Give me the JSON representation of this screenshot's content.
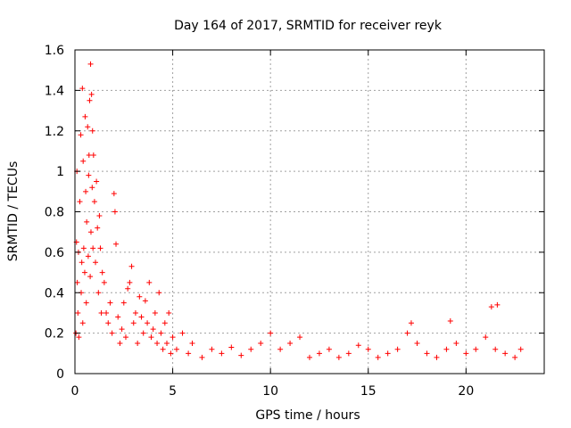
{
  "chart_data": {
    "type": "scatter",
    "title": "Day 164 of 2017, SRMTID for receiver reyk",
    "xlabel": "GPS time / hours",
    "ylabel": "SRMTID / TECUs",
    "xlim": [
      0,
      24
    ],
    "ylim": [
      0,
      1.6
    ],
    "x_ticks": [
      0,
      5,
      10,
      15,
      20
    ],
    "x_tick_labels": [
      "0",
      "5",
      "10",
      "15",
      "20"
    ],
    "y_ticks": [
      0,
      0.2,
      0.4,
      0.6,
      0.8,
      1,
      1.2,
      1.4,
      1.6
    ],
    "y_tick_labels": [
      "0",
      "0.2",
      "0.4",
      "0.6",
      "0.8",
      "1",
      "1.2",
      "1.4",
      "1.6"
    ],
    "grid": true,
    "marker": "+",
    "marker_color": "#ff0000",
    "series": [
      {
        "name": "SRMTID",
        "points": [
          [
            0.05,
            0.2
          ],
          [
            0.08,
            0.65
          ],
          [
            0.1,
            1.0
          ],
          [
            0.12,
            0.45
          ],
          [
            0.15,
            0.3
          ],
          [
            0.18,
            0.6
          ],
          [
            0.2,
            0.18
          ],
          [
            0.25,
            0.85
          ],
          [
            0.3,
            1.18
          ],
          [
            0.32,
            0.4
          ],
          [
            0.35,
            0.55
          ],
          [
            0.38,
            1.41
          ],
          [
            0.4,
            0.25
          ],
          [
            0.42,
            1.05
          ],
          [
            0.45,
            0.62
          ],
          [
            0.5,
            0.5
          ],
          [
            0.52,
            1.27
          ],
          [
            0.55,
            0.9
          ],
          [
            0.58,
            0.35
          ],
          [
            0.6,
            0.75
          ],
          [
            0.65,
            1.22
          ],
          [
            0.68,
            0.58
          ],
          [
            0.7,
            0.98
          ],
          [
            0.72,
            1.08
          ],
          [
            0.75,
            1.35
          ],
          [
            0.78,
            0.48
          ],
          [
            0.8,
            1.53
          ],
          [
            0.82,
            0.7
          ],
          [
            0.85,
            1.38
          ],
          [
            0.88,
            0.92
          ],
          [
            0.9,
            1.2
          ],
          [
            0.92,
            0.62
          ],
          [
            0.95,
            1.08
          ],
          [
            1.0,
            0.85
          ],
          [
            1.05,
            0.55
          ],
          [
            1.1,
            0.95
          ],
          [
            1.15,
            0.72
          ],
          [
            1.2,
            0.4
          ],
          [
            1.25,
            0.78
          ],
          [
            1.3,
            0.62
          ],
          [
            1.35,
            0.3
          ],
          [
            1.4,
            0.5
          ],
          [
            1.5,
            0.45
          ],
          [
            1.6,
            0.3
          ],
          [
            1.7,
            0.25
          ],
          [
            1.8,
            0.35
          ],
          [
            1.9,
            0.2
          ],
          [
            2.0,
            0.89
          ],
          [
            2.05,
            0.8
          ],
          [
            2.1,
            0.64
          ],
          [
            2.2,
            0.28
          ],
          [
            2.3,
            0.15
          ],
          [
            2.4,
            0.22
          ],
          [
            2.5,
            0.35
          ],
          [
            2.6,
            0.18
          ],
          [
            2.7,
            0.42
          ],
          [
            2.8,
            0.45
          ],
          [
            2.9,
            0.53
          ],
          [
            3.0,
            0.25
          ],
          [
            3.1,
            0.3
          ],
          [
            3.2,
            0.15
          ],
          [
            3.3,
            0.38
          ],
          [
            3.4,
            0.28
          ],
          [
            3.5,
            0.2
          ],
          [
            3.6,
            0.36
          ],
          [
            3.7,
            0.25
          ],
          [
            3.8,
            0.45
          ],
          [
            3.9,
            0.18
          ],
          [
            4.0,
            0.22
          ],
          [
            4.1,
            0.3
          ],
          [
            4.2,
            0.15
          ],
          [
            4.3,
            0.4
          ],
          [
            4.4,
            0.2
          ],
          [
            4.5,
            0.12
          ],
          [
            4.6,
            0.25
          ],
          [
            4.7,
            0.15
          ],
          [
            4.8,
            0.3
          ],
          [
            4.9,
            0.1
          ],
          [
            5.0,
            0.18
          ],
          [
            5.2,
            0.12
          ],
          [
            5.5,
            0.2
          ],
          [
            5.8,
            0.1
          ],
          [
            6.0,
            0.15
          ],
          [
            6.5,
            0.08
          ],
          [
            7.0,
            0.12
          ],
          [
            7.5,
            0.1
          ],
          [
            8.0,
            0.13
          ],
          [
            8.5,
            0.09
          ],
          [
            9.0,
            0.12
          ],
          [
            9.5,
            0.15
          ],
          [
            10.0,
            0.2
          ],
          [
            10.5,
            0.12
          ],
          [
            11.0,
            0.15
          ],
          [
            11.5,
            0.18
          ],
          [
            12.0,
            0.08
          ],
          [
            12.5,
            0.1
          ],
          [
            13.0,
            0.12
          ],
          [
            13.5,
            0.08
          ],
          [
            14.0,
            0.1
          ],
          [
            14.5,
            0.14
          ],
          [
            15.0,
            0.12
          ],
          [
            15.5,
            0.08
          ],
          [
            16.0,
            0.1
          ],
          [
            16.5,
            0.12
          ],
          [
            17.0,
            0.2
          ],
          [
            17.2,
            0.25
          ],
          [
            17.5,
            0.15
          ],
          [
            18.0,
            0.1
          ],
          [
            18.5,
            0.08
          ],
          [
            19.0,
            0.12
          ],
          [
            19.2,
            0.26
          ],
          [
            19.5,
            0.15
          ],
          [
            20.0,
            0.1
          ],
          [
            20.5,
            0.12
          ],
          [
            21.0,
            0.18
          ],
          [
            21.3,
            0.33
          ],
          [
            21.5,
            0.12
          ],
          [
            21.6,
            0.34
          ],
          [
            22.0,
            0.1
          ],
          [
            22.5,
            0.08
          ],
          [
            22.8,
            0.12
          ]
        ]
      }
    ]
  }
}
